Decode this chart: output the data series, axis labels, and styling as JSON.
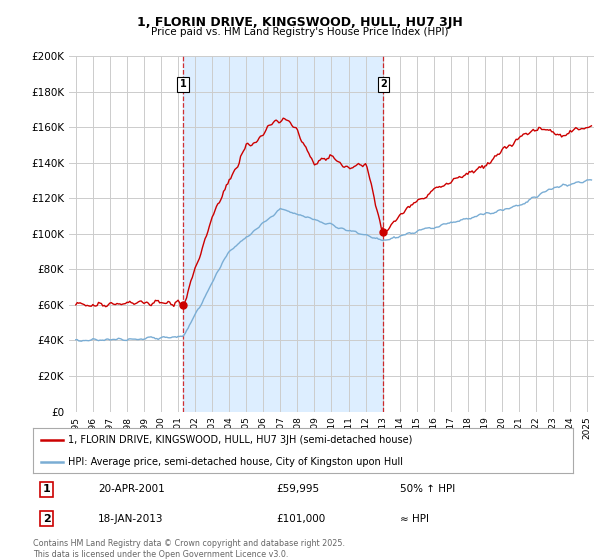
{
  "title": "1, FLORIN DRIVE, KINGSWOOD, HULL, HU7 3JH",
  "subtitle": "Price paid vs. HM Land Registry's House Price Index (HPI)",
  "legend_line1": "1, FLORIN DRIVE, KINGSWOOD, HULL, HU7 3JH (semi-detached house)",
  "legend_line2": "HPI: Average price, semi-detached house, City of Kingston upon Hull",
  "footer": "Contains HM Land Registry data © Crown copyright and database right 2025.\nThis data is licensed under the Open Government Licence v3.0.",
  "sale1_label": "1",
  "sale1_date_str": "20-APR-2001",
  "sale1_price": 59995,
  "sale1_pct": "50% ↑ HPI",
  "sale1_year": 2001.3,
  "sale2_label": "2",
  "sale2_date_str": "18-JAN-2013",
  "sale2_price": 101000,
  "sale2_pct": "≈ HPI",
  "sale2_year": 2013.05,
  "ylim": [
    0,
    200000
  ],
  "yticks": [
    0,
    20000,
    40000,
    60000,
    80000,
    100000,
    120000,
    140000,
    160000,
    180000,
    200000
  ],
  "red_color": "#cc0000",
  "blue_color": "#7aadd4",
  "shade_color": "#ddeeff",
  "bg_color": "#ffffff",
  "grid_color": "#cccccc"
}
